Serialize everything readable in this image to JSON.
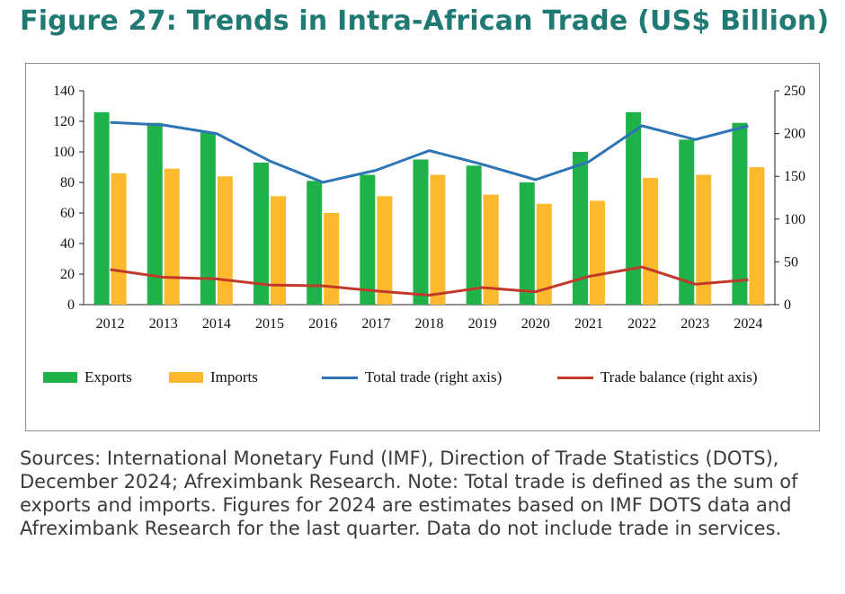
{
  "title": "Figure 27: Trends in Intra-African Trade (US$ Billion)",
  "source_note": "Sources: International Monetary Fund (IMF), Direction of Trade Statistics (DOTS), December 2024; Afreximbank Research. Note: Total trade is defined as the sum of exports and imports. Figures for 2024 are estimates based on IMF DOTS data and Afreximbank Research for the last quarter. Data do not include trade in services.",
  "colors": {
    "exports": "#1fb24a",
    "imports": "#fdb92e",
    "total_trade": "#2e75b6",
    "trade_balance": "#c0392b",
    "title": "#1f7a74"
  },
  "chart_data": {
    "type": "bar",
    "categories": [
      "2012",
      "2013",
      "2014",
      "2015",
      "2016",
      "2017",
      "2018",
      "2019",
      "2020",
      "2021",
      "2022",
      "2023",
      "2024"
    ],
    "left_axis": {
      "ylim": [
        0,
        140
      ],
      "ticks": [
        "0",
        "20",
        "40",
        "60",
        "80",
        "100",
        "120",
        "140"
      ]
    },
    "right_axis": {
      "ylim": [
        0,
        250
      ],
      "ticks": [
        "0",
        "50",
        "100",
        "150",
        "200",
        "250"
      ]
    },
    "series": [
      {
        "name": "Exports",
        "type": "bar",
        "axis": "left",
        "values": [
          126,
          119,
          113,
          93,
          81,
          85,
          95,
          91,
          80,
          100,
          126,
          108,
          119
        ]
      },
      {
        "name": "Imports",
        "type": "bar",
        "axis": "left",
        "values": [
          86,
          89,
          84,
          71,
          60,
          71,
          85,
          72,
          66,
          68,
          83,
          85,
          90
        ]
      },
      {
        "name": "Total trade (right axis)",
        "type": "line",
        "axis": "right",
        "values": [
          213,
          210,
          200,
          168,
          143,
          157,
          180,
          164,
          146,
          167,
          209,
          193,
          209
        ]
      },
      {
        "name": "Trade balance (right axis)",
        "type": "line",
        "axis": "right",
        "values": [
          41,
          32,
          30,
          23,
          22,
          16,
          11,
          20,
          15,
          33,
          44,
          24,
          29
        ]
      }
    ],
    "legend_position": "bottom",
    "grid": false
  }
}
